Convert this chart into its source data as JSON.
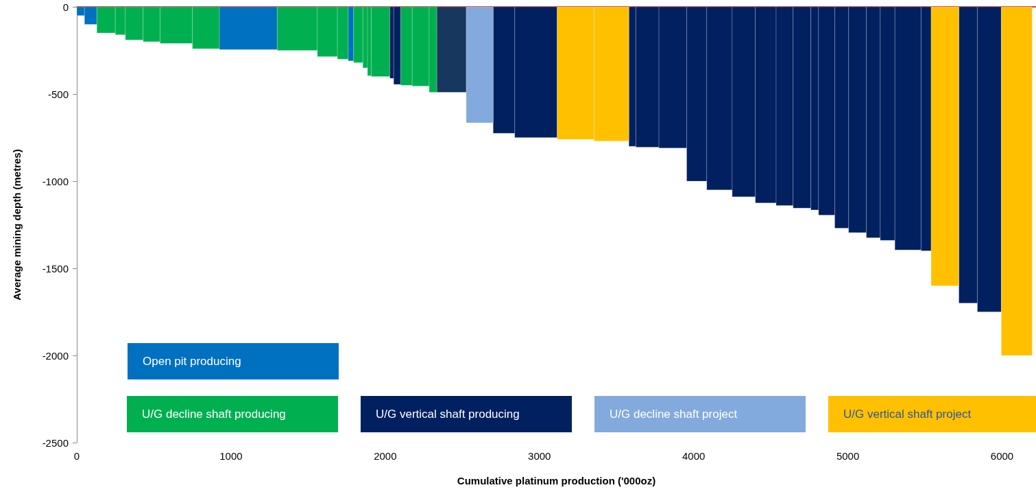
{
  "chart_data": {
    "type": "histogram",
    "xlabel": "Cumulative platinum production ('000oz)",
    "ylabel": "Average mining depth (metres)",
    "bins": [
      0,
      50,
      130,
      250,
      315,
      430,
      540,
      750,
      925,
      1300,
      1560,
      1690,
      1760,
      1795,
      1855,
      1885,
      1910,
      2030,
      2055,
      2100,
      2175,
      2285,
      2335,
      2525,
      2700,
      2840,
      3115,
      3355,
      3580,
      3625,
      3775,
      3955,
      4085,
      4250,
      4400,
      4535,
      4645,
      4760,
      4810,
      4915,
      5005,
      5120,
      5210,
      5305,
      5475,
      5540,
      5720,
      5840,
      5995,
      6195
    ],
    "series": [
      {
        "name": "Open pit producing",
        "color": "#0070c0",
        "values": [
          -50,
          -100,
          null,
          null,
          null,
          null,
          null,
          null,
          -245,
          null,
          null,
          null,
          -310,
          null,
          null,
          null,
          null,
          null,
          null,
          null,
          null,
          null,
          null,
          null,
          null,
          null,
          null,
          null,
          null,
          null,
          null,
          null,
          null,
          null,
          null,
          null,
          null,
          null,
          null,
          null,
          null,
          null,
          null,
          null,
          null,
          null,
          null,
          null,
          null
        ]
      },
      {
        "name": "U/G decline shaft producing",
        "color": "#00b050",
        "values": [
          null,
          null,
          -150,
          -160,
          -190,
          -200,
          -210,
          -240,
          null,
          -250,
          -285,
          -300,
          null,
          -320,
          -350,
          -395,
          -400,
          null,
          null,
          -450,
          -455,
          -490,
          null,
          null,
          null,
          null,
          null,
          null,
          null,
          null,
          null,
          null,
          null,
          null,
          null,
          null,
          null,
          null,
          null,
          null,
          null,
          null,
          null,
          null,
          null,
          null,
          null,
          null,
          null
        ]
      },
      {
        "name": "U/G vertical shaft producing",
        "color": "#002060",
        "values": [
          null,
          null,
          null,
          null,
          null,
          null,
          null,
          null,
          null,
          null,
          null,
          null,
          null,
          null,
          null,
          null,
          null,
          -410,
          -445,
          null,
          null,
          null,
          null,
          null,
          -725,
          -750,
          null,
          null,
          -800,
          -805,
          -810,
          -1000,
          -1050,
          -1090,
          -1125,
          -1140,
          -1155,
          -1165,
          -1195,
          -1270,
          -1295,
          -1325,
          -1340,
          -1395,
          -1400,
          null,
          -1700,
          -1750,
          null
        ]
      },
      {
        "name": "U/G decline shaft project",
        "color": "#82aadc",
        "values": [
          null,
          null,
          null,
          null,
          null,
          null,
          null,
          null,
          null,
          null,
          null,
          null,
          null,
          null,
          null,
          null,
          null,
          null,
          null,
          null,
          null,
          null,
          null,
          -665,
          null,
          null,
          null,
          null,
          null,
          null,
          null,
          null,
          null,
          null,
          null,
          null,
          null,
          null,
          null,
          null,
          null,
          null,
          null,
          null,
          null,
          null,
          null,
          null,
          null
        ]
      },
      {
        "name": "U/G vertical shaft project",
        "color": "#ffc000",
        "values": [
          null,
          null,
          null,
          null,
          null,
          null,
          null,
          null,
          null,
          null,
          null,
          null,
          null,
          null,
          null,
          null,
          null,
          null,
          null,
          null,
          null,
          null,
          null,
          null,
          null,
          null,
          -760,
          -770,
          null,
          null,
          null,
          null,
          null,
          null,
          null,
          null,
          null,
          null,
          null,
          null,
          null,
          null,
          null,
          null,
          null,
          -1600,
          null,
          null,
          -2000
        ]
      },
      {
        "color": "#17375e",
        "values": [
          null,
          null,
          null,
          null,
          null,
          null,
          null,
          null,
          null,
          null,
          null,
          null,
          null,
          null,
          null,
          null,
          null,
          null,
          null,
          null,
          null,
          null,
          -490,
          null,
          null,
          null,
          null,
          null,
          null,
          null,
          null,
          null,
          null,
          null,
          null,
          null,
          null,
          null,
          null,
          null,
          null,
          null,
          null,
          null,
          null,
          null,
          null,
          null,
          null
        ]
      }
    ],
    "xlim": [
      0,
      6220
    ],
    "xticks": [
      0,
      1000,
      2000,
      3000,
      4000,
      5000,
      6000
    ],
    "ylim": [
      -2500,
      0
    ],
    "yticks": [
      -2500,
      -2000,
      -1500,
      -1000,
      -500,
      0
    ],
    "grid": false,
    "legend": "bottom"
  }
}
